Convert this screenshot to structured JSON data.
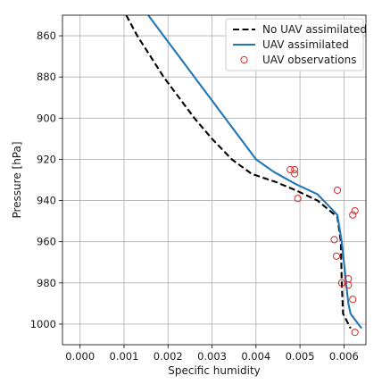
{
  "chart_data": {
    "type": "line",
    "title": "",
    "xlabel": "Specific humidity",
    "ylabel": "Pressure [hPa]",
    "xlim": [
      -0.0004,
      0.0065
    ],
    "ylim": [
      1010,
      850
    ],
    "y_inverted": true,
    "grid": true,
    "legend_position": "top-right",
    "x_ticks": [
      {
        "value": 0.0,
        "label": "0.000"
      },
      {
        "value": 0.001,
        "label": "0.001"
      },
      {
        "value": 0.002,
        "label": "0.002"
      },
      {
        "value": 0.003,
        "label": "0.003"
      },
      {
        "value": 0.004,
        "label": "0.004"
      },
      {
        "value": 0.005,
        "label": "0.005"
      },
      {
        "value": 0.006,
        "label": "0.006"
      }
    ],
    "y_ticks": [
      {
        "value": 860,
        "label": "860"
      },
      {
        "value": 880,
        "label": "880"
      },
      {
        "value": 900,
        "label": "900"
      },
      {
        "value": 920,
        "label": "920"
      },
      {
        "value": 940,
        "label": "940"
      },
      {
        "value": 960,
        "label": "960"
      },
      {
        "value": 980,
        "label": "980"
      },
      {
        "value": 1000,
        "label": "1000"
      }
    ],
    "series": [
      {
        "name": "No UAV assimilated",
        "style": "dashed",
        "color": "#000000",
        "points": [
          [
            0.00105,
            850
          ],
          [
            0.0013,
            860
          ],
          [
            0.0016,
            870
          ],
          [
            0.0019,
            880
          ],
          [
            0.00225,
            890
          ],
          [
            0.0026,
            900
          ],
          [
            0.003,
            910
          ],
          [
            0.00345,
            920
          ],
          [
            0.0039,
            927
          ],
          [
            0.00445,
            931
          ],
          [
            0.0049,
            935
          ],
          [
            0.0054,
            940
          ],
          [
            0.00585,
            948
          ],
          [
            0.00593,
            960
          ],
          [
            0.00595,
            980
          ],
          [
            0.00598,
            995
          ],
          [
            0.00615,
            1002
          ]
        ]
      },
      {
        "name": "UAV assimilated",
        "style": "solid",
        "color": "#1f77b4",
        "points": [
          [
            0.00155,
            850
          ],
          [
            0.0019,
            860
          ],
          [
            0.00225,
            870
          ],
          [
            0.0026,
            880
          ],
          [
            0.00295,
            890
          ],
          [
            0.0033,
            900
          ],
          [
            0.00365,
            910
          ],
          [
            0.004,
            920
          ],
          [
            0.0044,
            926
          ],
          [
            0.0049,
            932
          ],
          [
            0.0054,
            937
          ],
          [
            0.00585,
            947
          ],
          [
            0.00595,
            960
          ],
          [
            0.006,
            970
          ],
          [
            0.00605,
            980
          ],
          [
            0.0061,
            990
          ],
          [
            0.00615,
            995
          ],
          [
            0.0064,
            1002
          ]
        ]
      },
      {
        "name": "UAV observations",
        "style": "markers",
        "color": "#d62728",
        "points": [
          [
            0.00478,
            925
          ],
          [
            0.00488,
            925
          ],
          [
            0.00488,
            927
          ],
          [
            0.00495,
            939
          ],
          [
            0.00585,
            935
          ],
          [
            0.0062,
            947
          ],
          [
            0.00625,
            945
          ],
          [
            0.00578,
            959
          ],
          [
            0.00583,
            967
          ],
          [
            0.00595,
            980
          ],
          [
            0.0061,
            978
          ],
          [
            0.0061,
            981
          ],
          [
            0.0062,
            988
          ],
          [
            0.00625,
            1004
          ]
        ]
      }
    ]
  }
}
